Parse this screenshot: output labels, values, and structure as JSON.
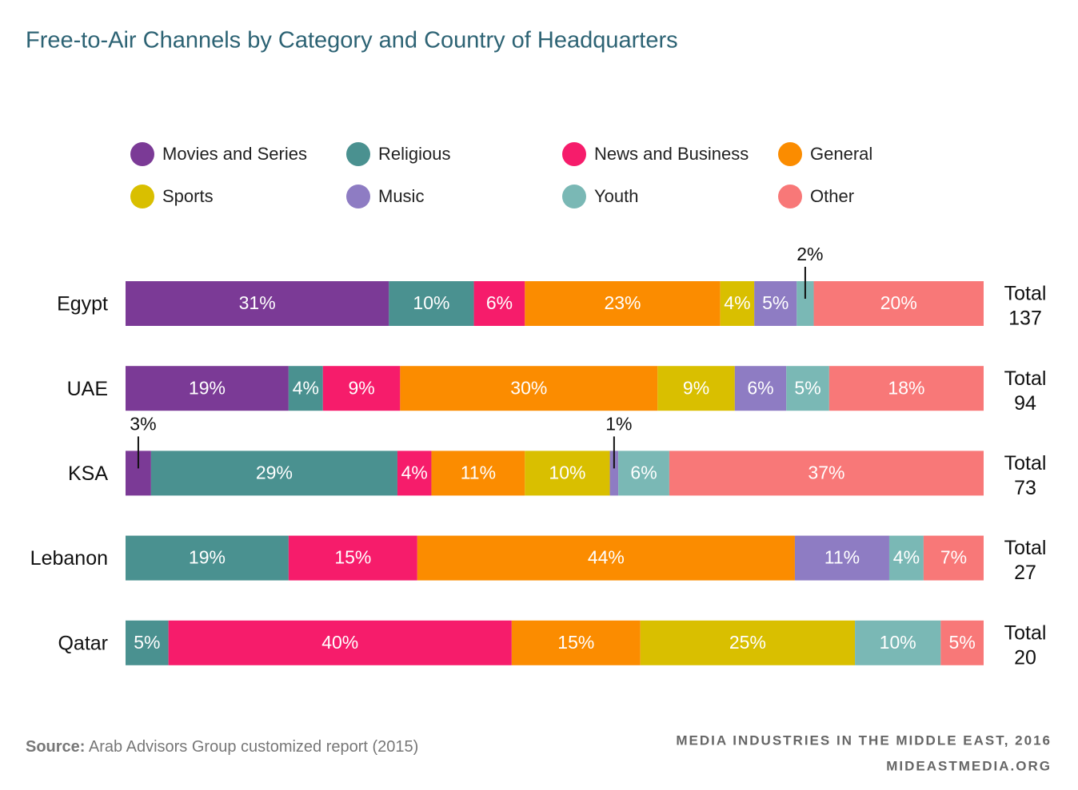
{
  "chart_data": {
    "type": "stacked_bar_100",
    "title": "Free-to-Air Channels by Category and Country of Headquarters",
    "categories": [
      "Egypt",
      "UAE",
      "KSA",
      "Lebanon",
      "Qatar"
    ],
    "series": [
      {
        "name": "Movies and Series",
        "color": "#7b3a96",
        "values": [
          31,
          19,
          3,
          null,
          null
        ],
        "value_labels": [
          "31%",
          "19%",
          "3%",
          null,
          null
        ]
      },
      {
        "name": "Religious",
        "color": "#4a9190",
        "values": [
          10,
          4,
          29,
          19,
          5
        ],
        "value_labels": [
          "10%",
          "4%",
          "29%",
          "19%",
          "5%"
        ]
      },
      {
        "name": "News and Business",
        "color": "#f61c6b",
        "values": [
          6,
          9,
          4,
          15,
          40
        ],
        "value_labels": [
          "6%",
          "9%",
          "4%",
          "15%",
          "40%"
        ]
      },
      {
        "name": "General",
        "color": "#fb8c00",
        "values": [
          23,
          30,
          11,
          44,
          15
        ],
        "value_labels": [
          "23%",
          "30%",
          "11%",
          "44%",
          "15%"
        ]
      },
      {
        "name": "Sports",
        "color": "#d9bf00",
        "values": [
          4,
          9,
          10,
          null,
          25
        ],
        "value_labels": [
          "4%",
          "9%",
          "10%",
          null,
          "25%"
        ]
      },
      {
        "name": "Music",
        "color": "#8e7cc3",
        "values": [
          5,
          6,
          1,
          11,
          null
        ],
        "value_labels": [
          "5%",
          "6%",
          "1%",
          "11%",
          null
        ]
      },
      {
        "name": "Youth",
        "color": "#7ab8b5",
        "values": [
          2,
          5,
          6,
          4,
          10
        ],
        "value_labels": [
          "2%",
          "5%",
          "6%",
          "4%",
          "10%"
        ]
      },
      {
        "name": "Other",
        "color": "#f87878",
        "values": [
          20,
          18,
          37,
          7,
          5
        ],
        "value_labels": [
          "20%",
          "18%",
          "37%",
          "7%",
          "5%"
        ]
      }
    ],
    "total_label": "Total",
    "totals": [
      137,
      94,
      73,
      27,
      20
    ],
    "source_label": "Source:",
    "source": "Arab Advisors Group customized report (2015)",
    "credit": [
      "MEDIA INDUSTRIES IN THE MIDDLE EAST, 2016",
      "MIDEASTMEDIA.ORG"
    ]
  }
}
